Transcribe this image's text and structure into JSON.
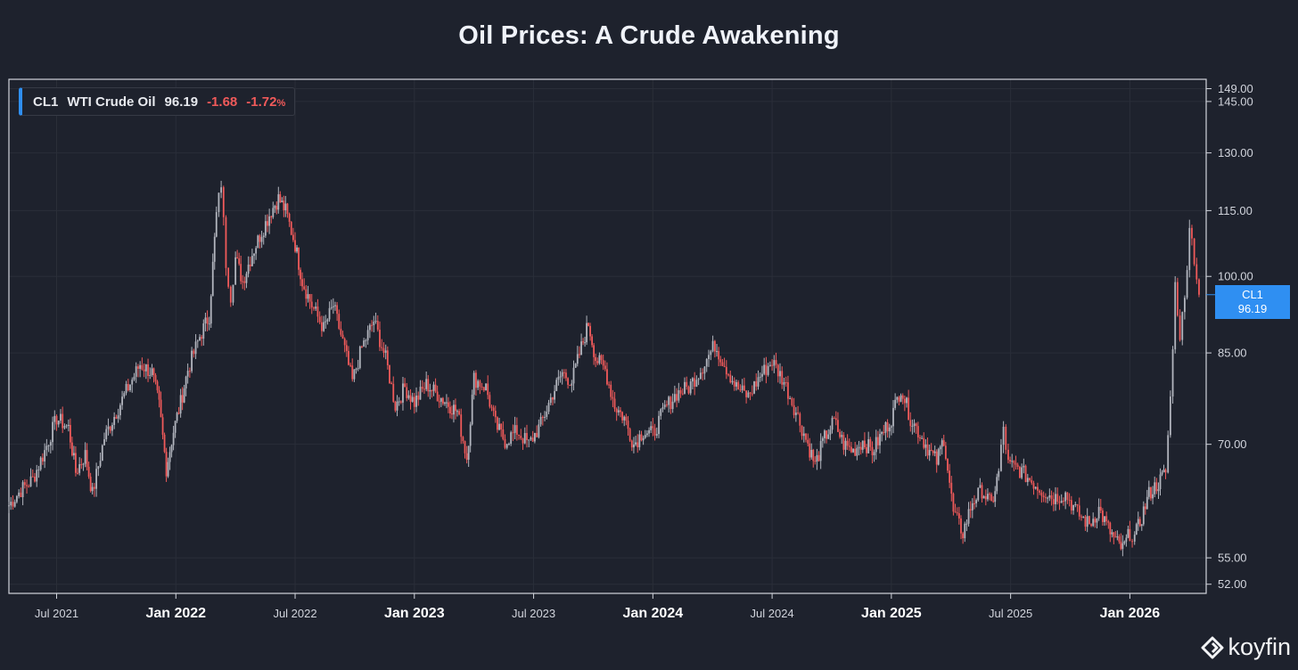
{
  "title": "Oil Prices: A Crude Awakening",
  "legend": {
    "ticker": "CL1",
    "name": "WTI Crude Oil",
    "last": "96.19",
    "change": "-1.68",
    "change_pct": "-1.72",
    "pct_sign": "%"
  },
  "price_tag": {
    "ticker": "CL1",
    "value": "96.19"
  },
  "watermark": "koyfin",
  "colors": {
    "background": "#1e222d",
    "up": "#b2b5be",
    "down": "#f05a5a",
    "accent": "#2f8ff2",
    "frame": "#d1d4dc",
    "grid": "#2a2e39"
  },
  "chart_data": {
    "type": "line",
    "title": "Oil Prices: A Crude Awakening",
    "series_name": "CL1 WTI Crude Oil",
    "scale": "log",
    "ylim": [
      51,
      152
    ],
    "xlim": [
      2021.3,
      2026.32
    ],
    "y_ticks": [
      {
        "value": 52,
        "label": "52.00"
      },
      {
        "value": 55,
        "label": "55.00"
      },
      {
        "value": 70,
        "label": "70.00"
      },
      {
        "value": 85,
        "label": "85.00"
      },
      {
        "value": 100,
        "label": "100.00"
      },
      {
        "value": 115,
        "label": "115.00"
      },
      {
        "value": 130,
        "label": "130.00"
      },
      {
        "value": 145,
        "label": "145.00"
      },
      {
        "value": 149,
        "label": "149.00"
      }
    ],
    "x_ticks": [
      {
        "t": 2021.5,
        "label": "Jul 2021",
        "major": false
      },
      {
        "t": 2022.0,
        "label": "Jan 2022",
        "major": true
      },
      {
        "t": 2022.5,
        "label": "Jul 2022",
        "major": false
      },
      {
        "t": 2023.0,
        "label": "Jan 2023",
        "major": true
      },
      {
        "t": 2023.5,
        "label": "Jul 2023",
        "major": false
      },
      {
        "t": 2024.0,
        "label": "Jan 2024",
        "major": true
      },
      {
        "t": 2024.5,
        "label": "Jul 2024",
        "major": false
      },
      {
        "t": 2025.0,
        "label": "Jan 2025",
        "major": true
      },
      {
        "t": 2025.5,
        "label": "Jul 2025",
        "major": false
      },
      {
        "t": 2026.0,
        "label": "Jan 2026",
        "major": true
      }
    ],
    "points": [
      [
        2021.3,
        61.5
      ],
      [
        2021.35,
        63.5
      ],
      [
        2021.4,
        65.0
      ],
      [
        2021.45,
        69.0
      ],
      [
        2021.5,
        74.0
      ],
      [
        2021.55,
        72.5
      ],
      [
        2021.58,
        66.0
      ],
      [
        2021.62,
        68.5
      ],
      [
        2021.65,
        63.0
      ],
      [
        2021.7,
        71.0
      ],
      [
        2021.75,
        75.0
      ],
      [
        2021.8,
        79.0
      ],
      [
        2021.85,
        83.0
      ],
      [
        2021.9,
        81.5
      ],
      [
        2021.93,
        76.0
      ],
      [
        2021.96,
        66.5
      ],
      [
        2021.99,
        72.0
      ],
      [
        2022.02,
        76.5
      ],
      [
        2022.05,
        82.0
      ],
      [
        2022.1,
        88.0
      ],
      [
        2022.14,
        92.0
      ],
      [
        2022.17,
        114.0
      ],
      [
        2022.19,
        122.0
      ],
      [
        2022.21,
        103.0
      ],
      [
        2022.23,
        96.0
      ],
      [
        2022.25,
        104.0
      ],
      [
        2022.28,
        99.0
      ],
      [
        2022.32,
        105.0
      ],
      [
        2022.36,
        110.0
      ],
      [
        2022.4,
        115.0
      ],
      [
        2022.43,
        118.0
      ],
      [
        2022.46,
        115.0
      ],
      [
        2022.5,
        107.0
      ],
      [
        2022.53,
        99.0
      ],
      [
        2022.57,
        94.0
      ],
      [
        2022.62,
        89.5
      ],
      [
        2022.66,
        94.0
      ],
      [
        2022.7,
        87.0
      ],
      [
        2022.74,
        80.0
      ],
      [
        2022.78,
        86.0
      ],
      [
        2022.83,
        91.0
      ],
      [
        2022.88,
        84.0
      ],
      [
        2022.92,
        76.0
      ],
      [
        2022.96,
        79.0
      ],
      [
        2023.0,
        76.5
      ],
      [
        2023.05,
        79.5
      ],
      [
        2023.12,
        77.0
      ],
      [
        2023.18,
        75.0
      ],
      [
        2023.22,
        68.0
      ],
      [
        2023.25,
        80.5
      ],
      [
        2023.3,
        79.0
      ],
      [
        2023.34,
        73.0
      ],
      [
        2023.38,
        70.5
      ],
      [
        2023.43,
        72.0
      ],
      [
        2023.48,
        70.0
      ],
      [
        2023.53,
        73.0
      ],
      [
        2023.58,
        78.0
      ],
      [
        2023.62,
        81.5
      ],
      [
        2023.66,
        80.0
      ],
      [
        2023.7,
        86.0
      ],
      [
        2023.73,
        90.5
      ],
      [
        2023.76,
        84.0
      ],
      [
        2023.8,
        82.0
      ],
      [
        2023.84,
        76.0
      ],
      [
        2023.88,
        74.0
      ],
      [
        2023.92,
        70.0
      ],
      [
        2023.96,
        72.0
      ],
      [
        2024.0,
        71.5
      ],
      [
        2024.05,
        75.5
      ],
      [
        2024.1,
        78.0
      ],
      [
        2024.15,
        79.0
      ],
      [
        2024.2,
        82.0
      ],
      [
        2024.26,
        86.5
      ],
      [
        2024.3,
        83.0
      ],
      [
        2024.35,
        79.0
      ],
      [
        2024.4,
        77.5
      ],
      [
        2024.45,
        81.0
      ],
      [
        2024.5,
        83.5
      ],
      [
        2024.55,
        80.0
      ],
      [
        2024.6,
        75.0
      ],
      [
        2024.65,
        70.0
      ],
      [
        2024.68,
        67.0
      ],
      [
        2024.72,
        71.0
      ],
      [
        2024.76,
        73.5
      ],
      [
        2024.8,
        70.0
      ],
      [
        2024.84,
        69.0
      ],
      [
        2024.88,
        70.5
      ],
      [
        2024.92,
        69.0
      ],
      [
        2024.96,
        71.5
      ],
      [
        2025.0,
        74.0
      ],
      [
        2025.04,
        79.0
      ],
      [
        2025.08,
        74.0
      ],
      [
        2025.12,
        71.5
      ],
      [
        2025.16,
        69.0
      ],
      [
        2025.19,
        67.5
      ],
      [
        2025.22,
        71.0
      ],
      [
        2025.26,
        60.5
      ],
      [
        2025.3,
        58.0
      ],
      [
        2025.34,
        62.0
      ],
      [
        2025.38,
        63.5
      ],
      [
        2025.42,
        61.5
      ],
      [
        2025.45,
        66.0
      ],
      [
        2025.47,
        72.5
      ],
      [
        2025.49,
        67.0
      ],
      [
        2025.53,
        66.5
      ],
      [
        2025.58,
        65.0
      ],
      [
        2025.63,
        63.5
      ],
      [
        2025.68,
        62.5
      ],
      [
        2025.73,
        63.0
      ],
      [
        2025.78,
        60.5
      ],
      [
        2025.83,
        59.0
      ],
      [
        2025.87,
        61.0
      ],
      [
        2025.91,
        58.5
      ],
      [
        2025.94,
        57.0
      ],
      [
        2025.97,
        56.0
      ],
      [
        2026.0,
        58.0
      ],
      [
        2026.02,
        57.5
      ],
      [
        2026.05,
        60.0
      ],
      [
        2026.08,
        63.0
      ],
      [
        2026.12,
        64.5
      ],
      [
        2026.15,
        66.0
      ],
      [
        2026.17,
        77.0
      ],
      [
        2026.19,
        98.0
      ],
      [
        2026.21,
        88.5
      ],
      [
        2026.23,
        95.0
      ],
      [
        2026.25,
        112.0
      ],
      [
        2026.27,
        104.0
      ],
      [
        2026.29,
        96.19
      ]
    ]
  }
}
